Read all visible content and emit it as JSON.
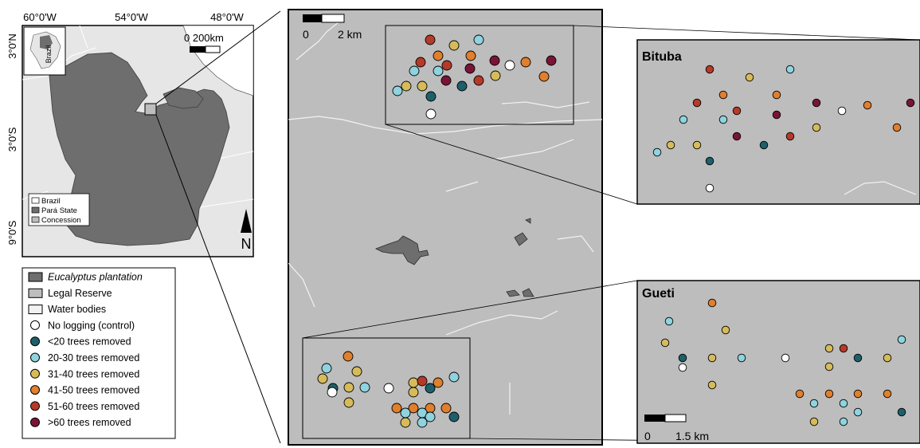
{
  "overview": {
    "lon_ticks": [
      "60°0'W",
      "54°0'W",
      "48°0'W"
    ],
    "lat_ticks": [
      "3°0'N",
      "3°0'S",
      "9°0'S"
    ],
    "inset_label": "Brazil",
    "scale_text": "0    200km",
    "north_label": "N",
    "map_legend": [
      {
        "label": "Brazil",
        "color": "#ffffff"
      },
      {
        "label": "Pará State",
        "color": "#6e6e6e"
      },
      {
        "label": "Concession",
        "color": "#bdbdbd"
      }
    ]
  },
  "colors": {
    "control": "#ffffff",
    "lt20": "#1d5f6b",
    "20_30": "#8fd3df",
    "31_40": "#d6bb5a",
    "41_50": "#e07f2e",
    "51_60": "#b53a2a",
    "gt60": "#7a1436"
  },
  "legend": [
    {
      "label": "Eucalyptus plantation",
      "shape": "rect",
      "color": "#6e6e6e",
      "italic": true,
      "italic_part": "Eucalyptus",
      "rest": " plantation"
    },
    {
      "label": "Legal Reserve",
      "shape": "rect",
      "color": "#bdbdbd"
    },
    {
      "label": "Water bodies",
      "shape": "rect",
      "color": "#f2f2f2"
    },
    {
      "label": "No logging (control)",
      "shape": "circle",
      "color": "#ffffff"
    },
    {
      "label": "<20 trees removed",
      "shape": "circle",
      "color": "#1d5f6b"
    },
    {
      "label": "20-30 trees removed",
      "shape": "circle",
      "color": "#8fd3df"
    },
    {
      "label": "31-40 trees removed",
      "shape": "circle",
      "color": "#d6bb5a"
    },
    {
      "label": "41-50 trees removed",
      "shape": "circle",
      "color": "#e07f2e"
    },
    {
      "label": "51-60 trees removed",
      "shape": "circle",
      "color": "#b53a2a"
    },
    {
      "label": ">60 trees removed",
      "shape": "circle",
      "color": "#7a1436"
    }
  ],
  "concession_map": {
    "scale_start": "0",
    "scale_end": "2 km"
  },
  "bituba": {
    "title": "Bituba"
  },
  "gueti": {
    "title": "Gueti",
    "scale_start": "0",
    "scale_end": "1.5 km"
  }
}
